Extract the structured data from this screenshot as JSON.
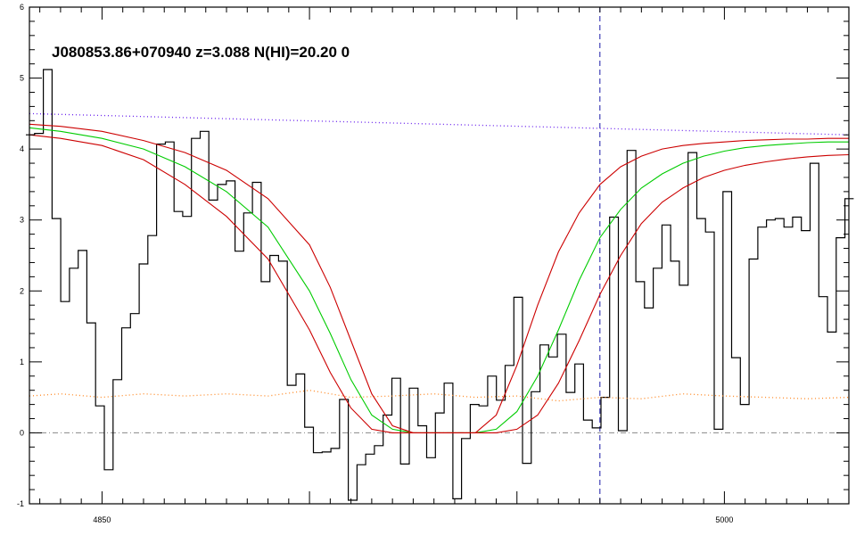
{
  "chart_data": {
    "type": "line",
    "title": "J080853.86+070940 z=3.088 N(HI)=20.20 0",
    "xlabel": "",
    "ylabel": "",
    "xlim": [
      4832.5,
      5030
    ],
    "ylim": [
      -1,
      6
    ],
    "x_ticks": [
      4850,
      4900,
      4950,
      5000
    ],
    "x_tick_labels": [
      "4850",
      "5000"
    ],
    "y_ticks": [
      -1,
      0,
      1,
      2,
      3,
      4,
      5,
      6
    ],
    "y_tick_labels": [
      "-1",
      "0",
      "1",
      "2",
      "3",
      "4",
      "5",
      "6"
    ],
    "grid": false,
    "legend": "none",
    "center_wavelength": 4970,
    "series": [
      {
        "style": "step",
        "color": "#000000",
        "x": [
          4832.7,
          4834.8,
          4836.9,
          4839.0,
          4841.1,
          4843.2,
          4845.3,
          4847.4,
          4849.5,
          4851.6,
          4853.7,
          4855.8,
          4857.9,
          4860.0,
          4862.1,
          4864.2,
          4866.3,
          4868.4,
          4870.5,
          4872.6,
          4874.7,
          4876.8,
          4878.9,
          4881.0,
          4883.1,
          4885.2,
          4887.3,
          4889.4,
          4891.5,
          4893.6,
          4895.7,
          4897.8,
          4899.9,
          4902.0,
          4904.1,
          4906.2,
          4908.3,
          4910.4,
          4912.5,
          4914.6,
          4916.7,
          4918.8,
          4920.9,
          4923.0,
          4925.1,
          4927.2,
          4929.3,
          4931.4,
          4933.5,
          4935.6,
          4937.7,
          4939.8,
          4941.9,
          4944.0,
          4946.1,
          4948.2,
          4950.3,
          4952.4,
          4954.5,
          4956.6,
          4958.7,
          4960.8,
          4962.9,
          4965.0,
          4967.1,
          4969.2,
          4971.3,
          4973.4,
          4975.5,
          4977.6,
          4979.7,
          4981.8,
          4983.9,
          4986.0,
          4988.1,
          4990.2,
          4992.3,
          4994.4,
          4996.5,
          4998.6,
          5000.7,
          5002.8,
          5004.9,
          5007.0,
          5009.1,
          5011.2,
          5013.3,
          5015.4,
          5017.5,
          5019.6,
          5021.7,
          5023.8,
          5025.9,
          5028.0,
          5030.1
        ],
        "values": [
          4.2,
          4.22,
          5.12,
          3.02,
          1.85,
          2.32,
          2.57,
          1.55,
          0.38,
          -0.52,
          0.75,
          1.48,
          1.68,
          2.38,
          2.78,
          4.07,
          4.1,
          3.12,
          3.05,
          4.15,
          4.25,
          3.28,
          3.5,
          3.55,
          2.56,
          3.1,
          3.53,
          2.13,
          2.5,
          2.42,
          0.67,
          0.83,
          0.08,
          -0.28,
          -0.27,
          -0.22,
          0.47,
          -0.95,
          -0.45,
          -0.3,
          -0.18,
          0.25,
          0.77,
          -0.44,
          0.63,
          0.1,
          -0.35,
          0.28,
          0.7,
          -0.93,
          -0.08,
          0.4,
          0.38,
          0.8,
          0.46,
          0.95,
          1.91,
          -0.43,
          0.58,
          1.24,
          1.07,
          1.39,
          0.57,
          0.97,
          0.18,
          0.07,
          0.5,
          3.04,
          0.03,
          3.98,
          2.13,
          1.76,
          2.32,
          2.93,
          2.42,
          2.08,
          3.95,
          3.02,
          2.83,
          0.05,
          3.4,
          1.06,
          0.4,
          2.45,
          2.9,
          3.0,
          3.02,
          2.9,
          3.04,
          2.85,
          3.8,
          1.92,
          1.42,
          2.75,
          3.3
        ]
      },
      {
        "style": "line",
        "color": "#00cc00",
        "x": [
          4832.5,
          4840,
          4850,
          4860,
          4870,
          4880,
          4890,
          4900,
          4905,
          4910,
          4915,
          4920,
          4925,
          4930,
          4935,
          4940,
          4945,
          4950,
          4955,
          4960,
          4965,
          4970,
          4975,
          4980,
          4985,
          4990,
          4995,
          5000,
          5005,
          5010,
          5015,
          5020,
          5025,
          5030
        ],
        "values": [
          4.3,
          4.25,
          4.15,
          4.0,
          3.75,
          3.4,
          2.9,
          2.0,
          1.4,
          0.75,
          0.25,
          0.05,
          0.0,
          0.0,
          0.0,
          0.0,
          0.05,
          0.3,
          0.8,
          1.45,
          2.15,
          2.75,
          3.15,
          3.45,
          3.65,
          3.8,
          3.9,
          3.97,
          4.02,
          4.05,
          4.07,
          4.09,
          4.1,
          4.1
        ]
      },
      {
        "style": "line",
        "color": "#cc0000",
        "x": [
          4832.5,
          4840,
          4850,
          4860,
          4870,
          4880,
          4890,
          4900,
          4905,
          4910,
          4915,
          4920,
          4925,
          4930,
          4935,
          4940,
          4945,
          4950,
          4955,
          4960,
          4965,
          4970,
          4975,
          4980,
          4985,
          4990,
          4995,
          5000,
          5005,
          5010,
          5015,
          5020,
          5025,
          5030
        ],
        "values": [
          4.35,
          4.32,
          4.25,
          4.12,
          3.95,
          3.7,
          3.3,
          2.65,
          2.05,
          1.3,
          0.55,
          0.1,
          0.0,
          0.0,
          0.0,
          0.0,
          0.25,
          0.95,
          1.8,
          2.55,
          3.1,
          3.5,
          3.75,
          3.9,
          4.0,
          4.05,
          4.08,
          4.1,
          4.12,
          4.13,
          4.14,
          4.14,
          4.15,
          4.15
        ]
      },
      {
        "style": "line",
        "color": "#cc0000",
        "x": [
          4832.5,
          4840,
          4850,
          4860,
          4870,
          4880,
          4890,
          4900,
          4905,
          4910,
          4915,
          4920,
          4925,
          4930,
          4935,
          4940,
          4945,
          4950,
          4955,
          4960,
          4965,
          4970,
          4975,
          4980,
          4985,
          4990,
          4995,
          5000,
          5005,
          5010,
          5015,
          5020,
          5025,
          5030
        ],
        "values": [
          4.2,
          4.15,
          4.05,
          3.85,
          3.5,
          3.05,
          2.45,
          1.45,
          0.85,
          0.35,
          0.05,
          0.0,
          0.0,
          0.0,
          0.0,
          0.0,
          0.0,
          0.05,
          0.25,
          0.7,
          1.3,
          1.95,
          2.5,
          2.95,
          3.25,
          3.45,
          3.6,
          3.7,
          3.77,
          3.82,
          3.86,
          3.89,
          3.91,
          3.92
        ]
      },
      {
        "style": "dotted",
        "color": "#6a22ee",
        "x": [
          4832.5,
          5030
        ],
        "values": [
          4.5,
          4.2
        ]
      },
      {
        "style": "dotted",
        "color": "#ff8822",
        "x": [
          4832.5,
          4840,
          4850,
          4860,
          4870,
          4880,
          4890,
          4900,
          4910,
          4920,
          4930,
          4940,
          4950,
          4960,
          4970,
          4980,
          4990,
          5000,
          5010,
          5020,
          5030
        ],
        "values": [
          0.52,
          0.55,
          0.5,
          0.55,
          0.52,
          0.55,
          0.52,
          0.6,
          0.5,
          0.52,
          0.55,
          0.5,
          0.52,
          0.45,
          0.5,
          0.48,
          0.55,
          0.52,
          0.5,
          0.48,
          0.5
        ]
      }
    ]
  }
}
